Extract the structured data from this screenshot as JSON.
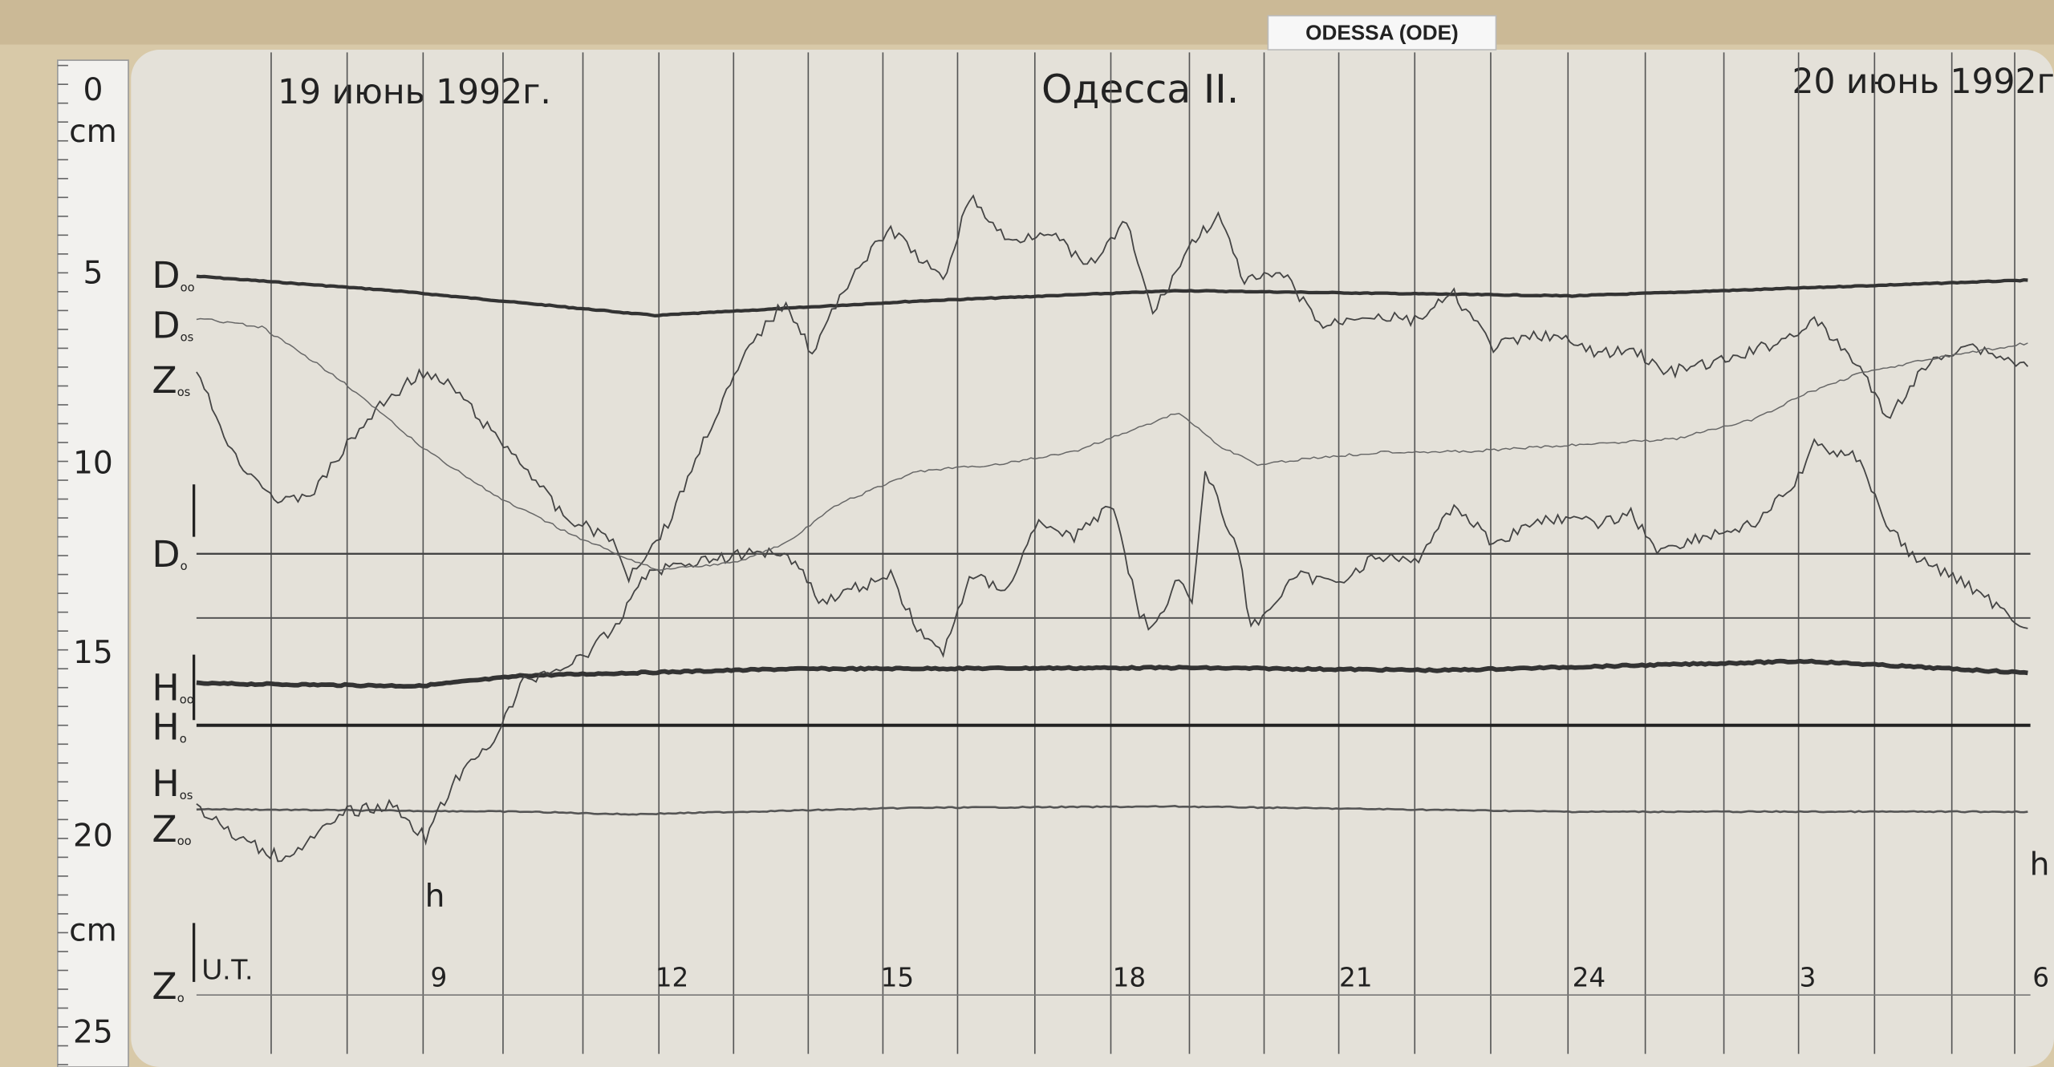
{
  "header": {
    "tag": "ODESSA (ODE)",
    "date_left": "19 июнь 1992г.",
    "station": "Одесса II.",
    "date_right": "20 июнь 1992г."
  },
  "ruler": {
    "labels": [
      "0",
      "cm",
      "5",
      "10",
      "15",
      "20",
      "cm",
      "25"
    ]
  },
  "traces": {
    "labels": [
      {
        "main": "D",
        "sub": "oo"
      },
      {
        "main": "D",
        "sub": "os"
      },
      {
        "main": "Z",
        "sub": "os"
      },
      {
        "main": "D",
        "sub": "o"
      },
      {
        "main": "H",
        "sub": "oo"
      },
      {
        "main": "H",
        "sub": "o"
      },
      {
        "main": "H",
        "sub": "os"
      },
      {
        "main": "Z",
        "sub": "oo"
      },
      {
        "main": "Z",
        "sub": "o"
      }
    ]
  },
  "time_axis": {
    "unit_label": "U.T.",
    "ticks": [
      "9",
      "12",
      "15",
      "18",
      "21",
      "24",
      "3",
      "6"
    ],
    "hour_marks": [
      "h",
      "h"
    ]
  }
}
